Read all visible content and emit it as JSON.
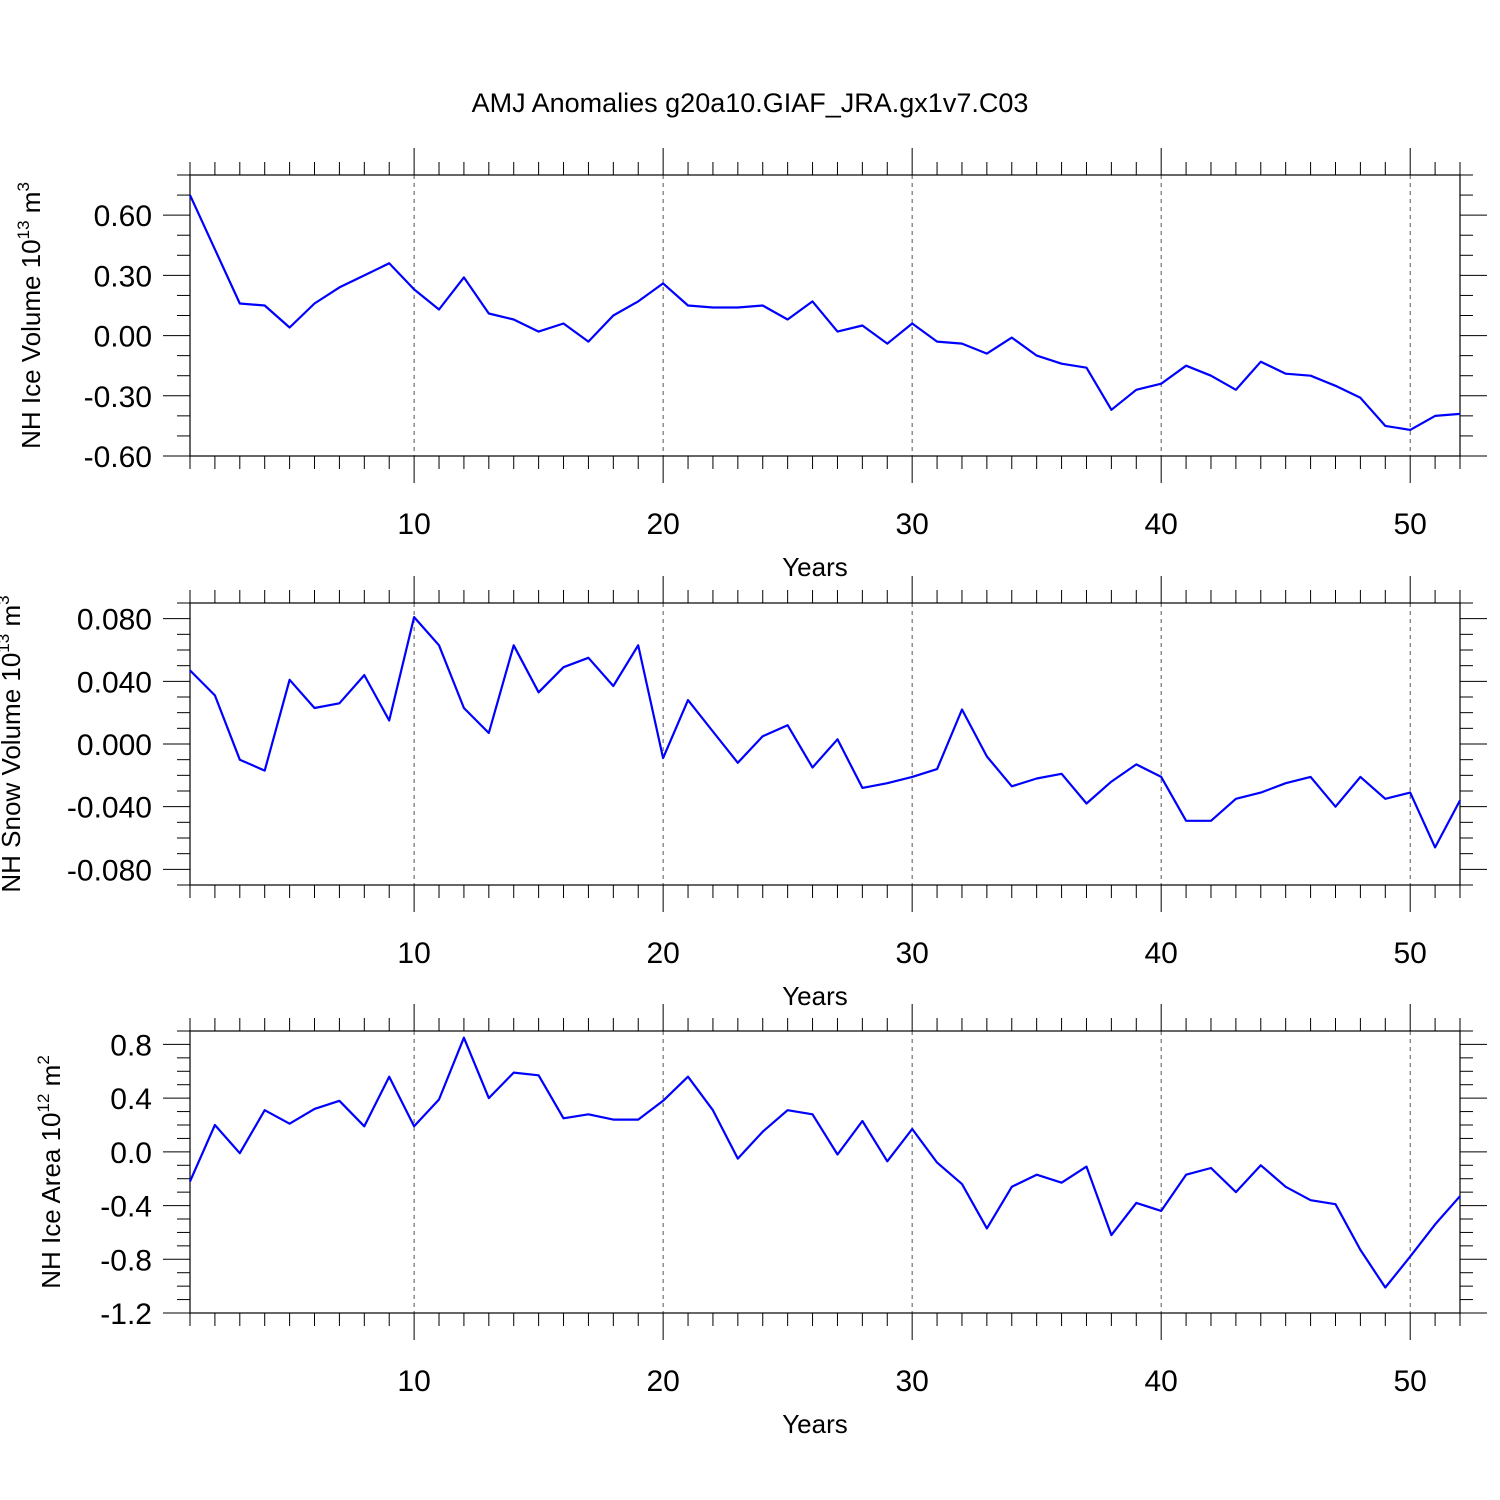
{
  "chart_data": {
    "title": "AMJ Anomalies g20a10.GIAF_JRA.gx1v7.C03",
    "type": "line",
    "panels": [
      {
        "type": "line",
        "xlabel": "Years",
        "ylabel": "NH Ice Volume 10",
        "ylabel_exp": "13",
        "ylabel_unit": " m",
        "ylabel_unit_exp": "3",
        "xlim": [
          1,
          52
        ],
        "ylim": [
          -0.6,
          0.8
        ],
        "xticks": [
          10,
          20,
          30,
          40,
          50
        ],
        "yticks": [
          -0.6,
          -0.3,
          0.0,
          0.3,
          0.6
        ],
        "ytick_labels": [
          "-0.60",
          "-0.30",
          "0.00",
          "0.30",
          "0.60"
        ],
        "x_minor_step": 1,
        "y_minor_step": 0.1,
        "grid": "x-major dashed",
        "series": [
          {
            "color": "#0000ff",
            "x": [
              1,
              2,
              3,
              4,
              5,
              6,
              7,
              8,
              9,
              10,
              11,
              12,
              13,
              14,
              15,
              16,
              17,
              18,
              19,
              20,
              21,
              22,
              23,
              24,
              25,
              26,
              27,
              28,
              29,
              30,
              31,
              32,
              33,
              34,
              35,
              36,
              37,
              38,
              39,
              40,
              41,
              42,
              43,
              44,
              45,
              46,
              47,
              48,
              49,
              50,
              51,
              52
            ],
            "values": [
              0.7,
              0.43,
              0.16,
              0.15,
              0.04,
              0.16,
              0.24,
              0.3,
              0.36,
              0.23,
              0.13,
              0.29,
              0.11,
              0.08,
              0.02,
              0.06,
              -0.03,
              0.1,
              0.17,
              0.26,
              0.15,
              0.14,
              0.14,
              0.15,
              0.08,
              0.17,
              0.02,
              0.05,
              -0.04,
              0.06,
              -0.03,
              -0.04,
              -0.09,
              -0.01,
              -0.1,
              -0.14,
              -0.16,
              -0.37,
              -0.27,
              -0.24,
              -0.15,
              -0.2,
              -0.27,
              -0.13,
              -0.19,
              -0.2,
              -0.25,
              -0.31,
              -0.45,
              -0.47,
              -0.4,
              -0.39
            ]
          }
        ]
      },
      {
        "type": "line",
        "xlabel": "Years",
        "ylabel": "NH Snow Volume 10",
        "ylabel_exp": "13",
        "ylabel_unit": " m",
        "ylabel_unit_exp": "3",
        "xlim": [
          1,
          52
        ],
        "ylim": [
          -0.09,
          0.09
        ],
        "xticks": [
          10,
          20,
          30,
          40,
          50
        ],
        "yticks": [
          -0.08,
          -0.04,
          0.0,
          0.04,
          0.08
        ],
        "ytick_labels": [
          "-0.080",
          "-0.040",
          "0.000",
          "0.040",
          "0.080"
        ],
        "x_minor_step": 1,
        "y_minor_step": 0.01,
        "grid": "x-major dashed",
        "series": [
          {
            "color": "#0000ff",
            "x": [
              1,
              2,
              3,
              4,
              5,
              6,
              7,
              8,
              9,
              10,
              11,
              12,
              13,
              14,
              15,
              16,
              17,
              18,
              19,
              20,
              21,
              22,
              23,
              24,
              25,
              26,
              27,
              28,
              29,
              30,
              31,
              32,
              33,
              34,
              35,
              36,
              37,
              38,
              39,
              40,
              41,
              42,
              43,
              44,
              45,
              46,
              47,
              48,
              49,
              50,
              51,
              52
            ],
            "values": [
              0.047,
              0.031,
              -0.01,
              -0.017,
              0.041,
              0.023,
              0.026,
              0.044,
              0.015,
              0.081,
              0.063,
              0.023,
              0.007,
              0.063,
              0.033,
              0.049,
              0.055,
              0.037,
              0.063,
              -0.009,
              0.028,
              0.008,
              -0.012,
              0.005,
              0.012,
              -0.015,
              0.003,
              -0.028,
              -0.025,
              -0.021,
              -0.016,
              0.022,
              -0.008,
              -0.027,
              -0.022,
              -0.019,
              -0.038,
              -0.024,
              -0.013,
              -0.021,
              -0.049,
              -0.049,
              -0.035,
              -0.031,
              -0.025,
              -0.021,
              -0.04,
              -0.021,
              -0.035,
              -0.031,
              -0.066,
              -0.036
            ]
          }
        ]
      },
      {
        "type": "line",
        "xlabel": "Years",
        "ylabel": "NH Ice Area 10",
        "ylabel_exp": "12",
        "ylabel_unit": " m",
        "ylabel_unit_exp": "2",
        "xlim": [
          1,
          52
        ],
        "ylim": [
          -1.2,
          0.9
        ],
        "xticks": [
          10,
          20,
          30,
          40,
          50
        ],
        "yticks": [
          -1.2,
          -0.8,
          -0.4,
          0.0,
          0.4,
          0.8
        ],
        "ytick_labels": [
          "-1.2",
          "-0.8",
          "-0.4",
          "0.0",
          "0.4",
          "0.8"
        ],
        "x_minor_step": 1,
        "y_minor_step": 0.1,
        "grid": "x-major dashed",
        "series": [
          {
            "color": "#0000ff",
            "x": [
              1,
              2,
              3,
              4,
              5,
              6,
              7,
              8,
              9,
              10,
              11,
              12,
              13,
              14,
              15,
              16,
              17,
              18,
              19,
              20,
              21,
              22,
              23,
              24,
              25,
              26,
              27,
              28,
              29,
              30,
              31,
              32,
              33,
              34,
              35,
              36,
              37,
              38,
              39,
              40,
              41,
              42,
              43,
              44,
              45,
              46,
              47,
              48,
              49,
              50,
              51,
              52
            ],
            "values": [
              -0.22,
              0.2,
              -0.01,
              0.31,
              0.21,
              0.32,
              0.38,
              0.19,
              0.56,
              0.19,
              0.39,
              0.85,
              0.4,
              0.59,
              0.57,
              0.25,
              0.28,
              0.24,
              0.24,
              0.38,
              0.56,
              0.31,
              -0.05,
              0.15,
              0.31,
              0.28,
              -0.02,
              0.23,
              -0.07,
              0.17,
              -0.08,
              -0.24,
              -0.57,
              -0.26,
              -0.17,
              -0.23,
              -0.11,
              -0.62,
              -0.38,
              -0.44,
              -0.17,
              -0.12,
              -0.3,
              -0.1,
              -0.26,
              -0.36,
              -0.39,
              -0.73,
              -1.01,
              -0.78,
              -0.54,
              -0.33
            ]
          }
        ]
      }
    ]
  }
}
